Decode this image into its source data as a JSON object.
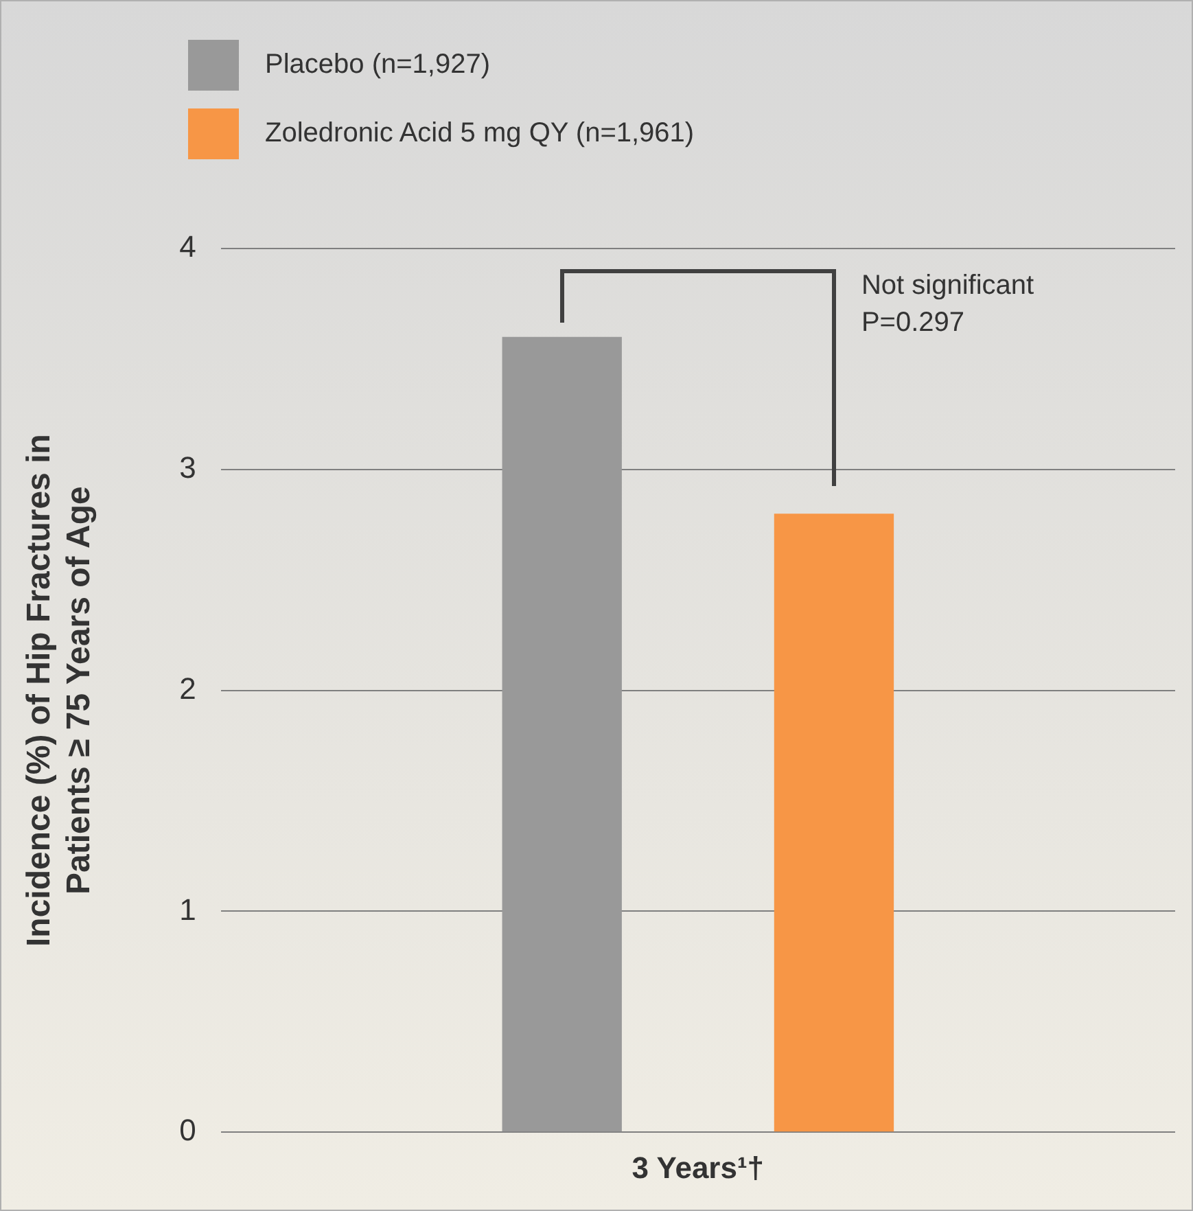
{
  "chart_data": {
    "type": "bar",
    "ylabel": "Incidence (%) of Hip Fractures in\nPatients ≥ 75 Years of Age",
    "categories": [
      "3 Years¹†"
    ],
    "series": [
      {
        "name": "Placebo (n=1,927)",
        "color": "#999999",
        "values": [
          3.6
        ]
      },
      {
        "name": "Zoledronic Acid 5 mg QY (n=1,961)",
        "color": "#f79646",
        "values": [
          2.8
        ]
      }
    ],
    "ylim": [
      0,
      4
    ],
    "yticks": [
      0,
      1,
      2,
      3,
      4
    ],
    "grid": "y",
    "legend": "top left",
    "annotations": [
      "Not significant",
      "P=0.297"
    ]
  }
}
